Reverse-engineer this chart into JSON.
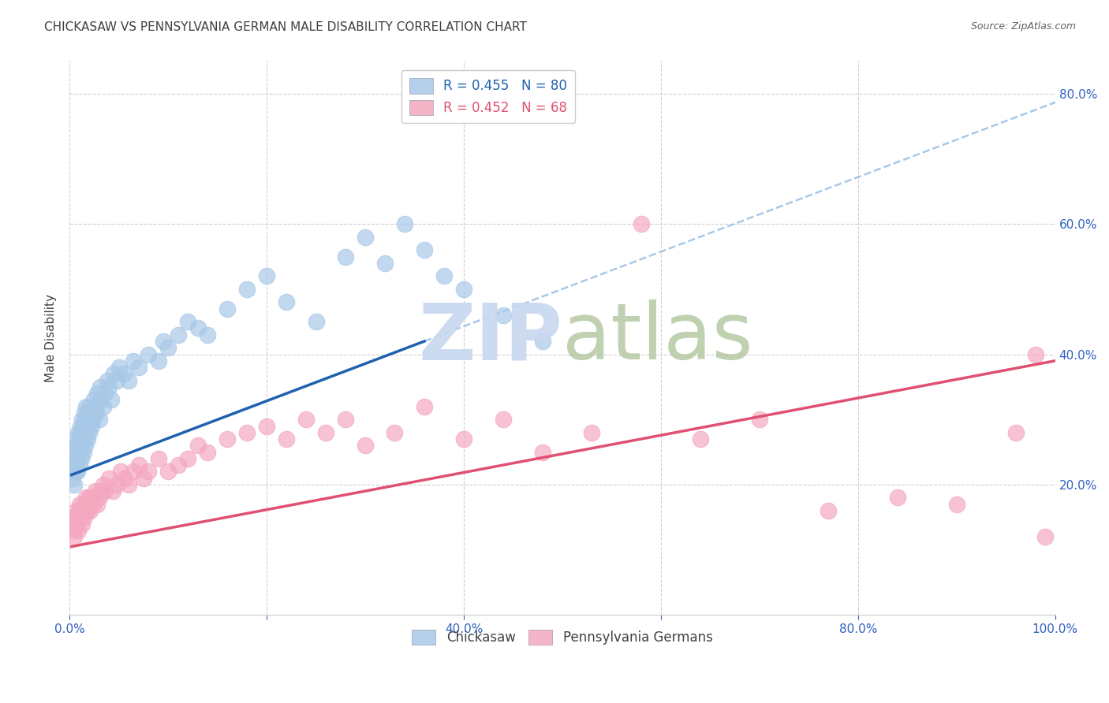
{
  "title": "CHICKASAW VS PENNSYLVANIA GERMAN MALE DISABILITY CORRELATION CHART",
  "source": "Source: ZipAtlas.com",
  "ylabel": "Male Disability",
  "xlim": [
    0,
    1.0
  ],
  "ylim": [
    0,
    0.85
  ],
  "xticks": [
    0.0,
    0.2,
    0.4,
    0.6,
    0.8,
    1.0
  ],
  "xticklabels": [
    "0.0%",
    "",
    "40.0%",
    "",
    "80.0%",
    "100.0%"
  ],
  "yticks": [
    0.2,
    0.4,
    0.6,
    0.8
  ],
  "yticklabels": [
    "20.0%",
    "40.0%",
    "60.0%",
    "80.0%"
  ],
  "bottom_xtick_positions": [
    0.0,
    0.2,
    0.4,
    0.6,
    0.8,
    1.0
  ],
  "bottom_xticklabels": [
    "0.0%",
    "",
    "40.0%",
    "",
    "80.0%",
    "100.0%"
  ],
  "legend_labels": [
    "Chickasaw",
    "Pennsylvania Germans"
  ],
  "chickasaw_R": 0.455,
  "chickasaw_N": 80,
  "penn_german_R": 0.452,
  "penn_german_N": 68,
  "chickasaw_color": "#a8c8e8",
  "penn_german_color": "#f4a8c0",
  "chickasaw_line_color": "#2060b0",
  "penn_german_line_color": "#e05070",
  "dash_color": "#a8c8e8",
  "watermark_zip_color": "#c8d8f0",
  "watermark_atlas_color": "#c0d4b8",
  "background_color": "#ffffff",
  "grid_color": "#d0d0d0",
  "tick_color": "#3060c0",
  "title_color": "#404040",
  "source_color": "#606060",
  "ylabel_color": "#404040",
  "title_fontsize": 11,
  "source_fontsize": 9,
  "tick_fontsize": 11,
  "legend_fontsize": 12,
  "ylabel_fontsize": 11,
  "chickasaw_x": [
    0.002,
    0.003,
    0.004,
    0.005,
    0.005,
    0.006,
    0.006,
    0.007,
    0.007,
    0.007,
    0.008,
    0.008,
    0.009,
    0.009,
    0.01,
    0.01,
    0.011,
    0.011,
    0.012,
    0.012,
    0.013,
    0.013,
    0.014,
    0.014,
    0.015,
    0.015,
    0.016,
    0.016,
    0.017,
    0.017,
    0.018,
    0.018,
    0.019,
    0.02,
    0.02,
    0.021,
    0.022,
    0.023,
    0.024,
    0.025,
    0.026,
    0.027,
    0.028,
    0.03,
    0.031,
    0.032,
    0.034,
    0.036,
    0.038,
    0.04,
    0.042,
    0.045,
    0.048,
    0.05,
    0.055,
    0.06,
    0.065,
    0.07,
    0.08,
    0.09,
    0.095,
    0.1,
    0.11,
    0.12,
    0.13,
    0.14,
    0.16,
    0.18,
    0.2,
    0.22,
    0.25,
    0.28,
    0.3,
    0.32,
    0.34,
    0.36,
    0.38,
    0.4,
    0.44,
    0.48
  ],
  "chickasaw_y": [
    0.22,
    0.21,
    0.24,
    0.2,
    0.25,
    0.22,
    0.26,
    0.23,
    0.24,
    0.27,
    0.22,
    0.26,
    0.24,
    0.28,
    0.23,
    0.27,
    0.25,
    0.29,
    0.24,
    0.28,
    0.26,
    0.3,
    0.25,
    0.29,
    0.27,
    0.31,
    0.26,
    0.3,
    0.28,
    0.32,
    0.27,
    0.31,
    0.29,
    0.28,
    0.32,
    0.3,
    0.29,
    0.31,
    0.3,
    0.33,
    0.32,
    0.31,
    0.34,
    0.3,
    0.35,
    0.33,
    0.32,
    0.34,
    0.36,
    0.35,
    0.33,
    0.37,
    0.36,
    0.38,
    0.37,
    0.36,
    0.39,
    0.38,
    0.4,
    0.39,
    0.42,
    0.41,
    0.43,
    0.45,
    0.44,
    0.43,
    0.47,
    0.5,
    0.52,
    0.48,
    0.45,
    0.55,
    0.58,
    0.54,
    0.6,
    0.56,
    0.52,
    0.5,
    0.46,
    0.42
  ],
  "penn_german_x": [
    0.002,
    0.003,
    0.004,
    0.005,
    0.006,
    0.007,
    0.008,
    0.009,
    0.01,
    0.01,
    0.011,
    0.012,
    0.013,
    0.014,
    0.015,
    0.016,
    0.017,
    0.018,
    0.019,
    0.02,
    0.021,
    0.022,
    0.024,
    0.026,
    0.028,
    0.03,
    0.032,
    0.034,
    0.036,
    0.04,
    0.044,
    0.048,
    0.052,
    0.056,
    0.06,
    0.065,
    0.07,
    0.075,
    0.08,
    0.09,
    0.1,
    0.11,
    0.12,
    0.13,
    0.14,
    0.16,
    0.18,
    0.2,
    0.22,
    0.24,
    0.26,
    0.28,
    0.3,
    0.33,
    0.36,
    0.4,
    0.44,
    0.48,
    0.53,
    0.58,
    0.64,
    0.7,
    0.77,
    0.84,
    0.9,
    0.96,
    0.98,
    0.99
  ],
  "penn_german_y": [
    0.14,
    0.13,
    0.15,
    0.12,
    0.16,
    0.14,
    0.15,
    0.13,
    0.16,
    0.17,
    0.15,
    0.16,
    0.14,
    0.17,
    0.15,
    0.16,
    0.18,
    0.16,
    0.17,
    0.18,
    0.16,
    0.18,
    0.17,
    0.19,
    0.17,
    0.18,
    0.19,
    0.2,
    0.19,
    0.21,
    0.19,
    0.2,
    0.22,
    0.21,
    0.2,
    0.22,
    0.23,
    0.21,
    0.22,
    0.24,
    0.22,
    0.23,
    0.24,
    0.26,
    0.25,
    0.27,
    0.28,
    0.29,
    0.27,
    0.3,
    0.28,
    0.3,
    0.26,
    0.28,
    0.32,
    0.27,
    0.3,
    0.25,
    0.28,
    0.6,
    0.27,
    0.3,
    0.16,
    0.18,
    0.17,
    0.28,
    0.4,
    0.12
  ],
  "chickasaw_line_x": [
    0.002,
    0.36
  ],
  "chickasaw_line_y": [
    0.215,
    0.42
  ],
  "penn_german_line_x": [
    0.002,
    1.0
  ],
  "penn_german_line_y": [
    0.105,
    0.39
  ],
  "dash_line_x": [
    0.3,
    1.02
  ],
  "dash_line_y_start_factor": 0.42,
  "dash_line_slope": 0.38
}
